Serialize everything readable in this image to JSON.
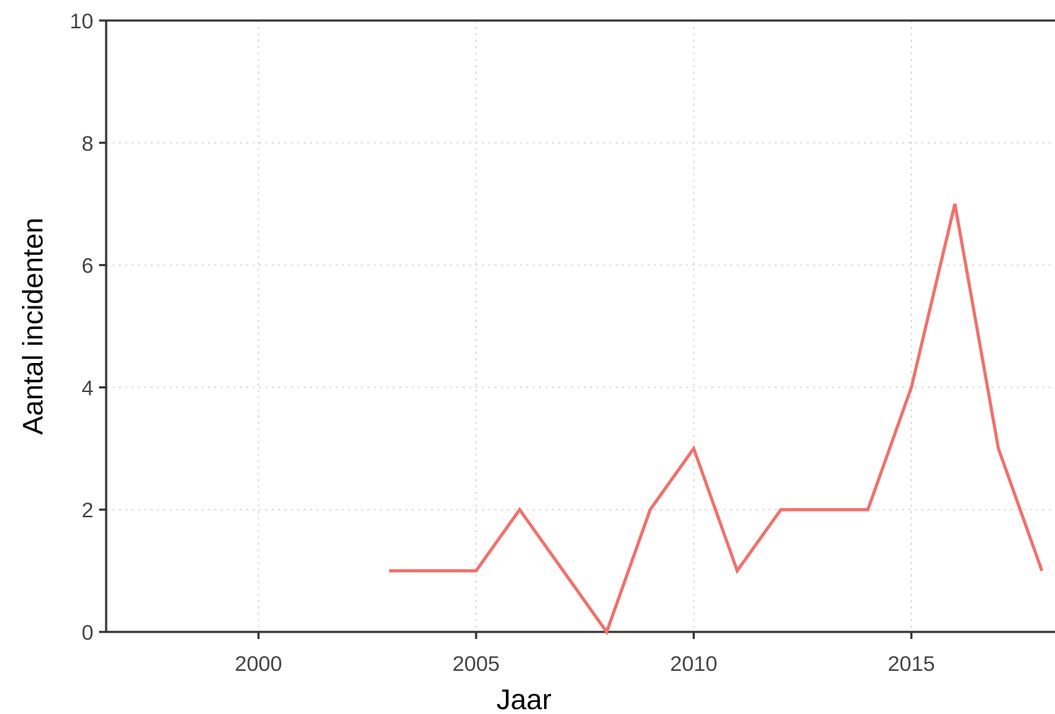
{
  "chart_data": {
    "type": "line",
    "xlabel": "Jaar",
    "ylabel": "Aantal incidenten",
    "xlim": [
      1996.5,
      2018.3
    ],
    "ylim": [
      0,
      10
    ],
    "x_ticks": [
      2000,
      2005,
      2010,
      2015
    ],
    "y_ticks": [
      0,
      2,
      4,
      6,
      8,
      10
    ],
    "grid": true,
    "series": [
      {
        "color": "#F0716B",
        "x": [
          2003,
          2004,
          2005,
          2006,
          2007,
          2008,
          2009,
          2010,
          2011,
          2012,
          2013,
          2014,
          2015,
          2016,
          2017,
          2018
        ],
        "y": [
          1,
          1,
          1,
          2,
          1,
          0,
          2,
          3,
          1,
          2,
          2,
          2,
          4,
          7,
          3,
          1
        ]
      }
    ]
  }
}
